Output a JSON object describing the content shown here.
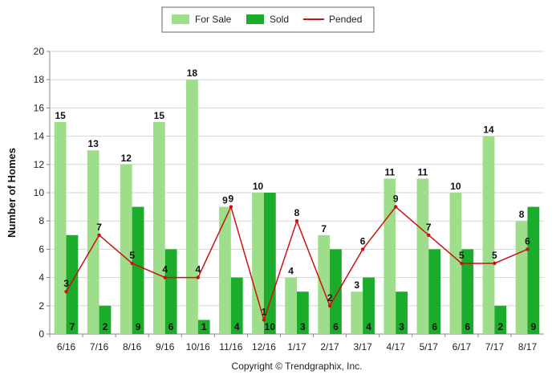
{
  "chart_data": {
    "type": "bar",
    "title": "",
    "xlabel": "",
    "ylabel": "Number of Homes",
    "ylim": [
      0,
      20
    ],
    "yticks": [
      0,
      2,
      4,
      6,
      8,
      10,
      12,
      14,
      16,
      18,
      20
    ],
    "grid": true,
    "legend_position": "top-center",
    "categories": [
      "6/16",
      "7/16",
      "8/16",
      "9/16",
      "10/16",
      "11/16",
      "12/16",
      "1/17",
      "2/17",
      "3/17",
      "4/17",
      "5/17",
      "6/17",
      "7/17",
      "8/17"
    ],
    "series": [
      {
        "name": "For Sale",
        "type": "bar",
        "color": "#9ede8a",
        "values": [
          15,
          13,
          12,
          15,
          18,
          9,
          10,
          4,
          7,
          3,
          11,
          11,
          10,
          14,
          8
        ]
      },
      {
        "name": "Sold",
        "type": "bar",
        "color": "#1aac2a",
        "values": [
          7,
          2,
          9,
          6,
          1,
          4,
          10,
          3,
          6,
          4,
          3,
          6,
          6,
          2,
          9
        ]
      },
      {
        "name": "Pended",
        "type": "line",
        "color": "#cc1111",
        "values": [
          3,
          7,
          5,
          4,
          4,
          9,
          1,
          8,
          2,
          6,
          9,
          7,
          5,
          5,
          6
        ]
      }
    ],
    "footer": "Copyright © Trendgraphix, Inc."
  }
}
